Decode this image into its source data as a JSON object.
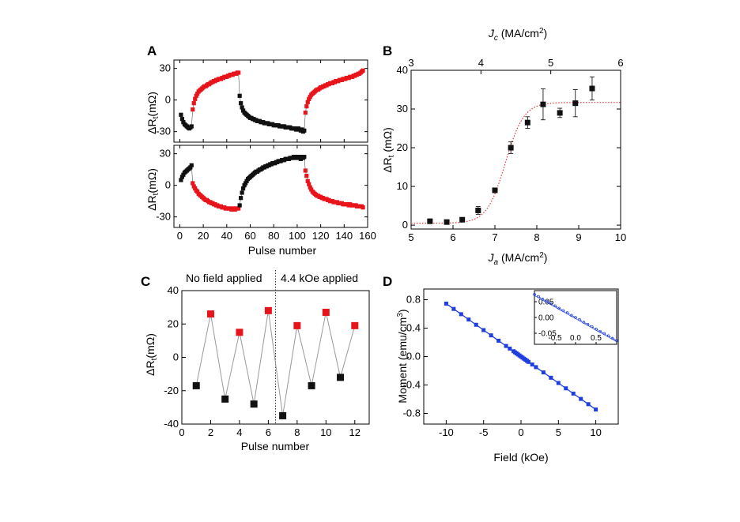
{
  "colors": {
    "red": "#e8141b",
    "black": "#111111",
    "blue": "#1f3ee0",
    "fit": "#e4383c"
  },
  "panel_labels": {
    "a": "A",
    "b": "B",
    "c": "C",
    "d": "D"
  },
  "chart_data": [
    {
      "id": "A_top",
      "type": "scatter",
      "ylabel": "ΔRt(mΩ)",
      "xlabel": "",
      "xlim": [
        -5,
        160
      ],
      "ylim": [
        -40,
        38
      ],
      "xticks": [
        0,
        20,
        40,
        60,
        80,
        100,
        120,
        140,
        160
      ],
      "xtick_labels_visible": false,
      "yticks": [
        -30,
        0,
        30
      ],
      "series": [
        {
          "name": "black-1",
          "color": "black",
          "x": [
            1,
            2,
            3,
            4,
            5,
            6,
            7,
            8,
            9,
            10
          ],
          "y": [
            -14,
            -18,
            -21,
            -23,
            -24,
            -25,
            -26,
            -27,
            -26,
            -25
          ]
        },
        {
          "name": "red-1",
          "color": "red",
          "x": [
            11,
            12,
            13,
            14,
            15,
            16,
            17,
            18,
            19,
            20,
            21,
            22,
            23,
            24,
            25,
            26,
            27,
            28,
            29,
            30,
            31,
            32,
            33,
            34,
            35,
            36,
            37,
            38,
            39,
            40,
            41,
            42,
            43,
            44,
            45,
            46,
            47,
            48,
            49,
            50
          ],
          "y": [
            -9,
            -3,
            1,
            4,
            6,
            8,
            9,
            10,
            11,
            12,
            13,
            13,
            14,
            15,
            15,
            16,
            17,
            17,
            18,
            18,
            19,
            19,
            20,
            20,
            20,
            21,
            21,
            22,
            22,
            22,
            23,
            23,
            24,
            24,
            24,
            25,
            25,
            25,
            26,
            26
          ]
        },
        {
          "name": "black-2",
          "color": "black",
          "x": [
            51,
            52,
            53,
            54,
            55,
            56,
            57,
            58,
            59,
            60,
            61,
            62,
            63,
            64,
            65,
            66,
            67,
            68,
            69,
            70,
            71,
            72,
            73,
            74,
            75,
            76,
            77,
            78,
            79,
            80,
            81,
            82,
            83,
            84,
            85,
            86,
            87,
            88,
            89,
            90,
            91,
            92,
            93,
            94,
            95,
            96,
            97,
            98,
            99,
            100,
            101,
            102,
            103,
            104,
            105,
            106
          ],
          "y": [
            4,
            -3,
            -7,
            -10,
            -12,
            -13,
            -14,
            -15,
            -16,
            -17,
            -17,
            -18,
            -18,
            -19,
            -19,
            -20,
            -20,
            -20,
            -21,
            -21,
            -21,
            -22,
            -22,
            -22,
            -22,
            -23,
            -23,
            -23,
            -23,
            -24,
            -24,
            -24,
            -24,
            -24,
            -25,
            -25,
            -25,
            -25,
            -25,
            -26,
            -26,
            -26,
            -26,
            -26,
            -27,
            -27,
            -27,
            -27,
            -28,
            -28,
            -27,
            -28,
            -29,
            -28,
            -30,
            -29
          ]
        },
        {
          "name": "red-2",
          "color": "red",
          "x": [
            107,
            108,
            109,
            110,
            111,
            112,
            113,
            114,
            115,
            116,
            117,
            118,
            119,
            120,
            121,
            122,
            123,
            124,
            125,
            126,
            127,
            128,
            129,
            130,
            131,
            132,
            133,
            134,
            135,
            136,
            137,
            138,
            139,
            140,
            141,
            142,
            143,
            144,
            145,
            146,
            147,
            148,
            149,
            150,
            151,
            152,
            153,
            154,
            155,
            156
          ],
          "y": [
            -12,
            -6,
            -2,
            1,
            3,
            5,
            6,
            7,
            8,
            9,
            10,
            10,
            11,
            12,
            12,
            13,
            13,
            14,
            14,
            15,
            15,
            16,
            16,
            16,
            17,
            17,
            18,
            18,
            18,
            19,
            19,
            19,
            20,
            20,
            20,
            21,
            21,
            21,
            22,
            22,
            22,
            23,
            23,
            24,
            24,
            25,
            25,
            26,
            27,
            28
          ]
        }
      ]
    },
    {
      "id": "A_bottom",
      "type": "scatter",
      "ylabel": "ΔRt(mΩ)",
      "xlabel": "Pulse number",
      "xlim": [
        -5,
        160
      ],
      "ylim": [
        -40,
        38
      ],
      "xticks": [
        0,
        20,
        40,
        60,
        80,
        100,
        120,
        140,
        160
      ],
      "yticks": [
        -30,
        0,
        30
      ],
      "series": [
        {
          "name": "black-1",
          "color": "black",
          "x": [
            1,
            2,
            3,
            4,
            5,
            6,
            7,
            8,
            9,
            10
          ],
          "y": [
            5,
            8,
            10,
            12,
            13,
            14,
            15,
            16,
            17,
            19
          ]
        },
        {
          "name": "red-1",
          "color": "red",
          "x": [
            11,
            12,
            13,
            14,
            15,
            16,
            17,
            18,
            19,
            20,
            21,
            22,
            23,
            24,
            25,
            26,
            27,
            28,
            29,
            30,
            31,
            32,
            33,
            34,
            35,
            36,
            37,
            38,
            39,
            40,
            41,
            42,
            43,
            44,
            45,
            46,
            47,
            48,
            49,
            50
          ],
          "y": [
            2,
            -1,
            -3,
            -5,
            -6,
            -8,
            -9,
            -10,
            -11,
            -12,
            -13,
            -14,
            -14,
            -15,
            -16,
            -16,
            -17,
            -17,
            -18,
            -18,
            -19,
            -19,
            -20,
            -20,
            -20,
            -21,
            -21,
            -21,
            -22,
            -22,
            -22,
            -22,
            -22,
            -23,
            -22,
            -22,
            -23,
            -22,
            -22,
            -22
          ]
        },
        {
          "name": "black-2",
          "color": "black",
          "x": [
            51,
            52,
            53,
            54,
            55,
            56,
            57,
            58,
            59,
            60,
            61,
            62,
            63,
            64,
            65,
            66,
            67,
            68,
            69,
            70,
            71,
            72,
            73,
            74,
            75,
            76,
            77,
            78,
            79,
            80,
            81,
            82,
            83,
            84,
            85,
            86,
            87,
            88,
            89,
            90,
            91,
            92,
            93,
            94,
            95,
            96,
            97,
            98,
            99,
            100,
            101,
            102,
            103,
            104,
            105,
            106
          ],
          "y": [
            -19,
            -12,
            -7,
            -3,
            0,
            2,
            4,
            6,
            7,
            8,
            9,
            10,
            11,
            12,
            13,
            13,
            14,
            15,
            15,
            16,
            17,
            17,
            18,
            18,
            19,
            19,
            20,
            20,
            21,
            21,
            21,
            22,
            22,
            23,
            23,
            23,
            24,
            24,
            24,
            25,
            25,
            25,
            25,
            26,
            26,
            26,
            27,
            26,
            27,
            27,
            26,
            27,
            25,
            27,
            26,
            27
          ]
        },
        {
          "name": "red-2",
          "color": "red",
          "x": [
            107,
            108,
            109,
            110,
            111,
            112,
            113,
            114,
            115,
            116,
            117,
            118,
            119,
            120,
            121,
            122,
            123,
            124,
            125,
            126,
            127,
            128,
            129,
            130,
            131,
            132,
            133,
            134,
            135,
            136,
            137,
            138,
            139,
            140,
            141,
            142,
            143,
            144,
            145,
            146,
            147,
            148,
            149,
            150,
            151,
            152,
            153,
            154,
            155,
            156
          ],
          "y": [
            14,
            9,
            4,
            1,
            -2,
            -4,
            -6,
            -7,
            -8,
            -9,
            -10,
            -10,
            -11,
            -11,
            -12,
            -12,
            -13,
            -13,
            -13,
            -14,
            -14,
            -15,
            -15,
            -15,
            -16,
            -16,
            -16,
            -16,
            -17,
            -17,
            -17,
            -17,
            -18,
            -18,
            -18,
            -18,
            -18,
            -19,
            -18,
            -19,
            -19,
            -19,
            -19,
            -19,
            -20,
            -20,
            -20,
            -20,
            -20,
            -21
          ]
        }
      ]
    },
    {
      "id": "B",
      "type": "scatter",
      "ylabel": "ΔRt (mΩ)",
      "xlabel": "Ja (MA/cm2)",
      "top_xlabel": "Jc (MA/cm2)",
      "xlim": [
        5,
        10
      ],
      "ylim": [
        -1,
        40
      ],
      "xticks": [
        5,
        6,
        7,
        8,
        9,
        10
      ],
      "yticks": [
        0,
        10,
        20,
        30,
        40
      ],
      "top_xlim": [
        3,
        6
      ],
      "top_xticks": [
        3,
        4,
        5,
        6
      ],
      "series": [
        {
          "name": "data",
          "color": "black",
          "x": [
            5.45,
            5.85,
            6.22,
            6.6,
            7.0,
            7.38,
            7.78,
            8.15,
            8.55,
            8.92,
            9.32
          ],
          "y": [
            1.0,
            0.8,
            1.4,
            3.8,
            9.0,
            20.0,
            26.5,
            31.2,
            29.0,
            31.5,
            35.3
          ],
          "err": [
            0.6,
            0.4,
            0.5,
            1.0,
            0.5,
            1.5,
            1.5,
            4.0,
            1.2,
            3.5,
            3.0
          ]
        }
      ],
      "fit": {
        "type": "sigmoid",
        "color": "fit",
        "base": 0.5,
        "top": 31.7,
        "x0": 7.25,
        "width": 0.22
      }
    },
    {
      "id": "C",
      "type": "scatter",
      "ylabel": "ΔRt(mΩ)",
      "xlabel": "Pulse number",
      "xlim": [
        0,
        13
      ],
      "ylim": [
        -40,
        40
      ],
      "xticks": [
        0,
        2,
        4,
        6,
        8,
        10,
        12
      ],
      "yticks": [
        -40,
        -20,
        0,
        20,
        40
      ],
      "annotations": {
        "left": "No field applied",
        "right": "4.4 kOe applied"
      },
      "divider_x": 6.5,
      "series": [
        {
          "name": "pulses",
          "x": [
            1,
            2,
            3,
            4,
            5,
            6,
            7,
            8,
            9,
            10,
            11,
            12
          ],
          "y": [
            -17,
            26,
            -25,
            15,
            -28,
            28,
            -35,
            19,
            -17,
            27,
            -12,
            19
          ],
          "colors": [
            "black",
            "red",
            "black",
            "red",
            "black",
            "red",
            "black",
            "red",
            "black",
            "red",
            "black",
            "red"
          ]
        }
      ]
    },
    {
      "id": "D",
      "type": "line",
      "ylabel": "Moment (emu/cm3)",
      "xlabel": "Field (kOe)",
      "xlim": [
        -13,
        13
      ],
      "ylim": [
        -0.95,
        0.95
      ],
      "xticks": [
        -10,
        -5,
        0,
        5,
        10
      ],
      "yticks": [
        -0.8,
        -0.4,
        0.0,
        0.4,
        0.8
      ],
      "ytick_labels": [
        "-0.8",
        "-0.4",
        "0.0",
        "0.4",
        "0.8"
      ],
      "series": [
        {
          "name": "moment",
          "color": "blue",
          "x": [
            -10,
            -9,
            -8,
            -7,
            -6,
            -5,
            -4,
            -3,
            -2,
            -1.5,
            -1,
            -0.8,
            -0.6,
            -0.4,
            -0.2,
            0,
            0.2,
            0.4,
            0.6,
            0.8,
            1,
            1.5,
            2,
            3,
            4,
            5,
            6,
            7,
            8,
            9,
            10
          ],
          "y": [
            0.745,
            0.67,
            0.596,
            0.521,
            0.447,
            0.372,
            0.298,
            0.223,
            0.149,
            0.112,
            0.075,
            0.06,
            0.045,
            0.03,
            0.015,
            0,
            -0.015,
            -0.03,
            -0.045,
            -0.06,
            -0.075,
            -0.112,
            -0.149,
            -0.223,
            -0.298,
            -0.372,
            -0.447,
            -0.521,
            -0.596,
            -0.67,
            -0.745
          ]
        }
      ],
      "inset": {
        "xlim": [
          -1,
          1
        ],
        "ylim": [
          -0.085,
          0.085
        ],
        "xticks": [
          -0.5,
          0.0,
          0.5
        ],
        "xtick_labels": [
          "-0.5",
          "0.0",
          "0.5"
        ],
        "yticks": [
          -0.05,
          0.0,
          0.05
        ],
        "ytick_labels": [
          "-0.05",
          "0.00",
          "0.05"
        ],
        "x": [
          -1,
          -0.9,
          -0.8,
          -0.7,
          -0.6,
          -0.5,
          -0.4,
          -0.3,
          -0.2,
          -0.1,
          0,
          0.1,
          0.2,
          0.3,
          0.4,
          0.5,
          0.6,
          0.7,
          0.8,
          0.9,
          1
        ],
        "y": [
          0.073,
          0.066,
          0.058,
          0.051,
          0.044,
          0.037,
          0.029,
          0.022,
          0.015,
          0.007,
          0,
          -0.007,
          -0.015,
          -0.022,
          -0.029,
          -0.037,
          -0.044,
          -0.051,
          -0.058,
          -0.066,
          -0.073
        ]
      }
    }
  ]
}
